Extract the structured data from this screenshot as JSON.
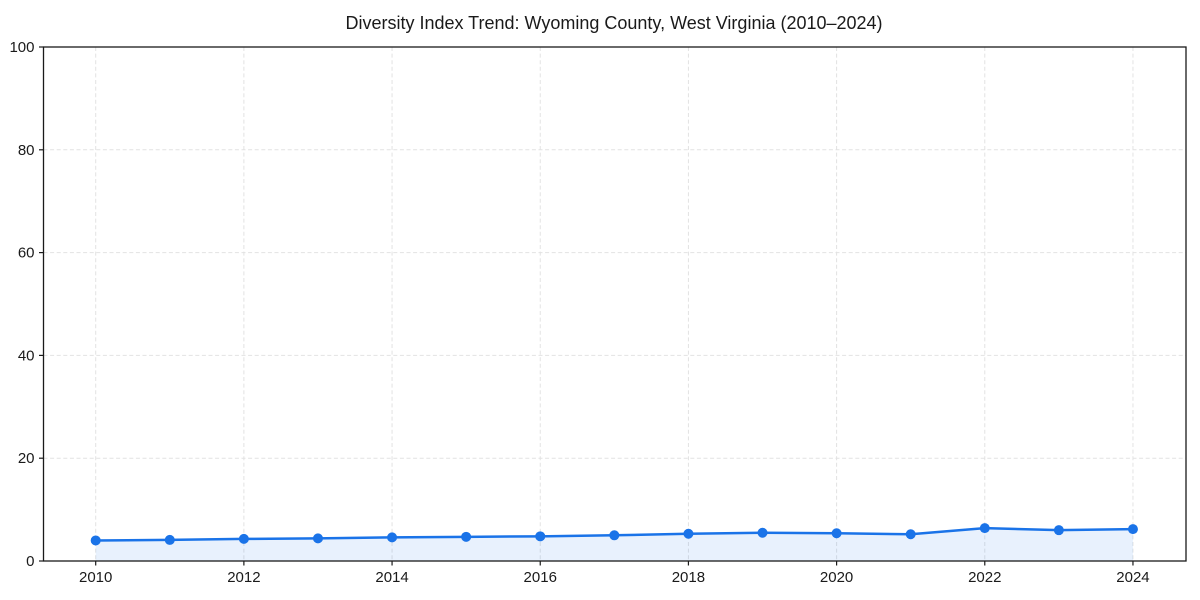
{
  "chart_data": {
    "type": "line",
    "title": "Diversity Index Trend: Wyoming County, West Virginia (2010–2024)",
    "xlabel": "",
    "ylabel": "",
    "x": [
      2010,
      2011,
      2012,
      2013,
      2014,
      2015,
      2016,
      2017,
      2018,
      2019,
      2020,
      2021,
      2022,
      2023,
      2024
    ],
    "series": [
      {
        "name": "Diversity Index",
        "values": [
          4.0,
          4.1,
          4.3,
          4.4,
          4.6,
          4.7,
          4.8,
          5.0,
          5.3,
          5.5,
          5.4,
          5.2,
          6.4,
          6.0,
          6.2
        ]
      }
    ],
    "ylim": [
      0,
      100
    ],
    "yticks": [
      0,
      20,
      40,
      60,
      80,
      100
    ],
    "xticks": [
      2010,
      2012,
      2014,
      2016,
      2018,
      2020,
      2022,
      2024
    ],
    "grid": true,
    "grid_style": "dashed",
    "legend": "none",
    "marker": "circle",
    "colors": {
      "line": "#1a73e8",
      "marker": "#1a73e8",
      "area_fill": "rgba(26,115,232,0.10)",
      "grid": "#e2e2e2",
      "spine": "#1a1a1a",
      "text": "#1a1a1a",
      "background": "#ffffff"
    }
  }
}
